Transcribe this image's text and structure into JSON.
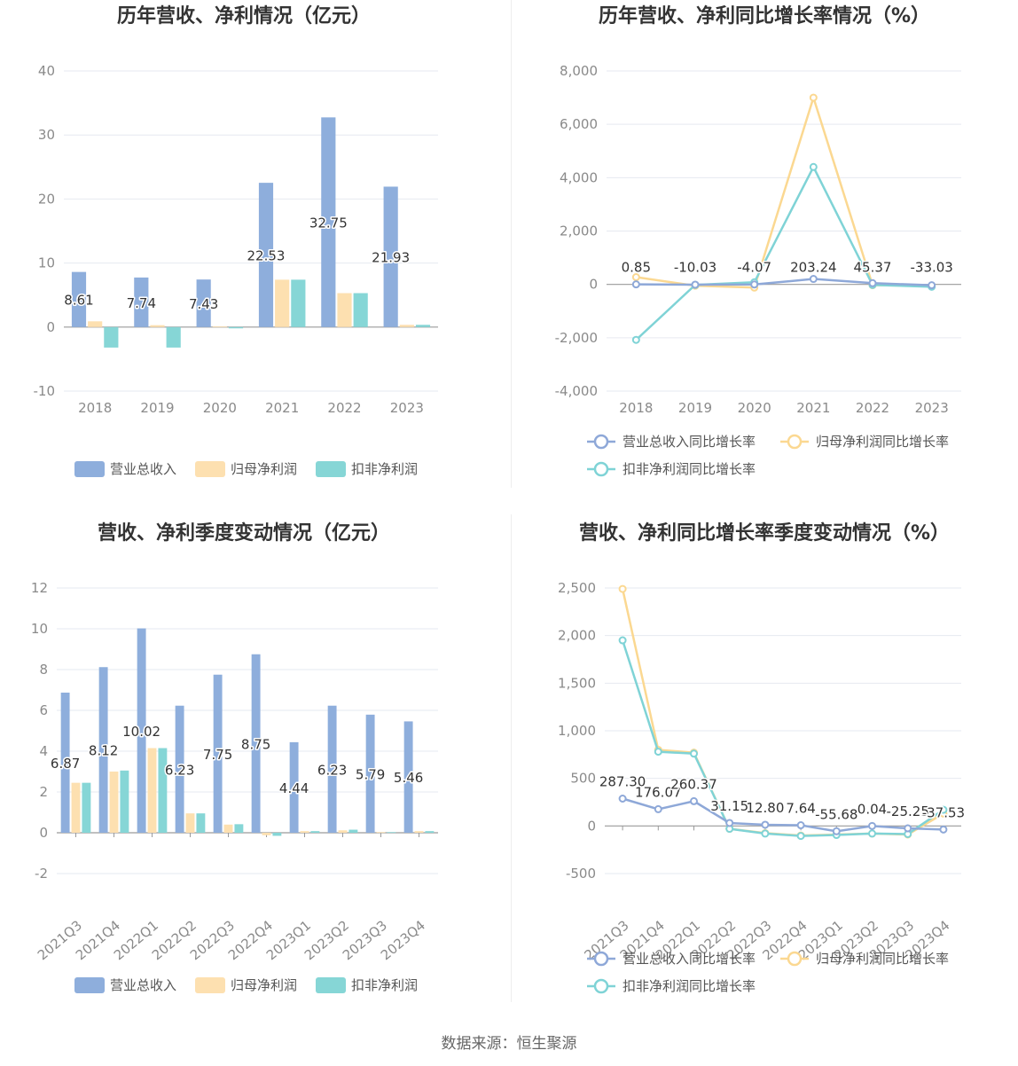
{
  "colors": {
    "revenue": "#8eaedc",
    "net_profit": "#fde0b0",
    "deducted_profit": "#86d6d6",
    "line_revenue": "#8ea8d8",
    "line_net": "#fbd891",
    "line_deducted": "#7fd3d6"
  },
  "source": "数据来源：恒生聚源",
  "chart_data": [
    {
      "type": "bar",
      "title": "历年营收、净利情况（亿元）",
      "categories": [
        "2018",
        "2019",
        "2020",
        "2021",
        "2022",
        "2023"
      ],
      "ylim": [
        -10,
        40
      ],
      "yticks": [
        -10,
        0,
        10,
        20,
        30,
        40
      ],
      "ytick_labels": [
        "-10",
        "0",
        "10",
        "20",
        "30",
        "40"
      ],
      "series": [
        {
          "name": "营业总收入",
          "values": [
            8.61,
            7.74,
            7.43,
            22.53,
            32.75,
            21.93
          ],
          "labels": [
            "8.61",
            "7.74",
            "7.43",
            "22.53",
            "32.75",
            "21.93"
          ]
        },
        {
          "name": "归母净利润",
          "values": [
            0.9,
            0.3,
            0.1,
            7.4,
            5.3,
            0.35
          ]
        },
        {
          "name": "扣非净利润",
          "values": [
            -3.2,
            -3.2,
            -0.2,
            7.4,
            5.3,
            0.35
          ]
        }
      ],
      "legend": "bottom"
    },
    {
      "type": "line",
      "title": "历年营收、净利同比增长率情况（%）",
      "categories": [
        "2018",
        "2019",
        "2020",
        "2021",
        "2022",
        "2023"
      ],
      "ylim": [
        -4000,
        8000
      ],
      "yticks": [
        -4000,
        -2000,
        0,
        2000,
        4000,
        6000,
        8000
      ],
      "ytick_labels": [
        "-4,000",
        "-2,000",
        "0",
        "2,000",
        "4,000",
        "6,000",
        "8,000"
      ],
      "series": [
        {
          "name": "营业总收入同比增长率",
          "values": [
            0.85,
            -10.03,
            -4.07,
            203.24,
            45.37,
            -33.03
          ],
          "labels": [
            "0.85",
            "-10.03",
            "-4.07",
            "203.24",
            "45.37",
            "-33.03"
          ]
        },
        {
          "name": "归母净利润同比增长率",
          "values": [
            270,
            -50,
            -120,
            7000,
            -30,
            -60
          ]
        },
        {
          "name": "扣非净利润同比增长率",
          "values": [
            -2080,
            -20,
            80,
            4400,
            -20,
            -90
          ]
        }
      ],
      "legend": "bottom"
    },
    {
      "type": "bar",
      "title": "营收、净利季度变动情况（亿元）",
      "categories": [
        "2021Q3",
        "2021Q4",
        "2022Q1",
        "2022Q2",
        "2022Q3",
        "2022Q4",
        "2023Q1",
        "2023Q2",
        "2023Q3",
        "2023Q4"
      ],
      "ylim": [
        -2,
        12
      ],
      "yticks": [
        -2,
        0,
        2,
        4,
        6,
        8,
        10,
        12
      ],
      "ytick_labels": [
        "-2",
        "0",
        "2",
        "4",
        "6",
        "8",
        "10",
        "12"
      ],
      "series": [
        {
          "name": "营业总收入",
          "values": [
            6.87,
            8.12,
            10.02,
            6.23,
            7.75,
            8.75,
            4.44,
            6.23,
            5.79,
            5.46
          ],
          "labels": [
            "6.87",
            "8.12",
            "10.02",
            "6.23",
            "7.75",
            "8.75",
            "4.44",
            "6.23",
            "5.79",
            "5.46"
          ]
        },
        {
          "name": "归母净利润",
          "values": [
            2.45,
            3.0,
            4.15,
            0.95,
            0.4,
            -0.12,
            0.08,
            0.12,
            0.03,
            0.08
          ]
        },
        {
          "name": "扣非净利润",
          "values": [
            2.45,
            3.05,
            4.15,
            0.95,
            0.42,
            -0.15,
            0.08,
            0.15,
            0.03,
            0.08
          ]
        }
      ],
      "legend": "bottom"
    },
    {
      "type": "line",
      "title": "营收、净利同比增长率季度变动情况（%）",
      "categories": [
        "2021Q3",
        "2021Q4",
        "2022Q1",
        "2022Q2",
        "2022Q3",
        "2022Q4",
        "2023Q1",
        "2023Q2",
        "2023Q3",
        "2023Q4"
      ],
      "ylim": [
        -500,
        2500
      ],
      "yticks": [
        -500,
        0,
        500,
        1000,
        1500,
        2000,
        2500
      ],
      "ytick_labels": [
        "-500",
        "0",
        "500",
        "1,000",
        "1,500",
        "2,000",
        "2,500"
      ],
      "series": [
        {
          "name": "营业总收入同比增长率",
          "values": [
            287.3,
            176.07,
            260.37,
            31.15,
            12.8,
            7.64,
            -55.68,
            0.04,
            -25.25,
            -37.53
          ],
          "labels": [
            "287.30",
            "176.07",
            "260.37",
            "31.15",
            "12.80",
            "7.64",
            "-55.68",
            "0.04",
            "-25.25",
            "-37.53"
          ]
        },
        {
          "name": "归母净利润同比增长率",
          "values": [
            2490,
            800,
            770,
            -30,
            -75,
            -100,
            -90,
            -80,
            -90,
            130
          ]
        },
        {
          "name": "扣非净利润同比增长率",
          "values": [
            1950,
            780,
            760,
            -30,
            -80,
            -105,
            -95,
            -80,
            -85,
            170
          ]
        }
      ],
      "legend": "bottom"
    }
  ]
}
